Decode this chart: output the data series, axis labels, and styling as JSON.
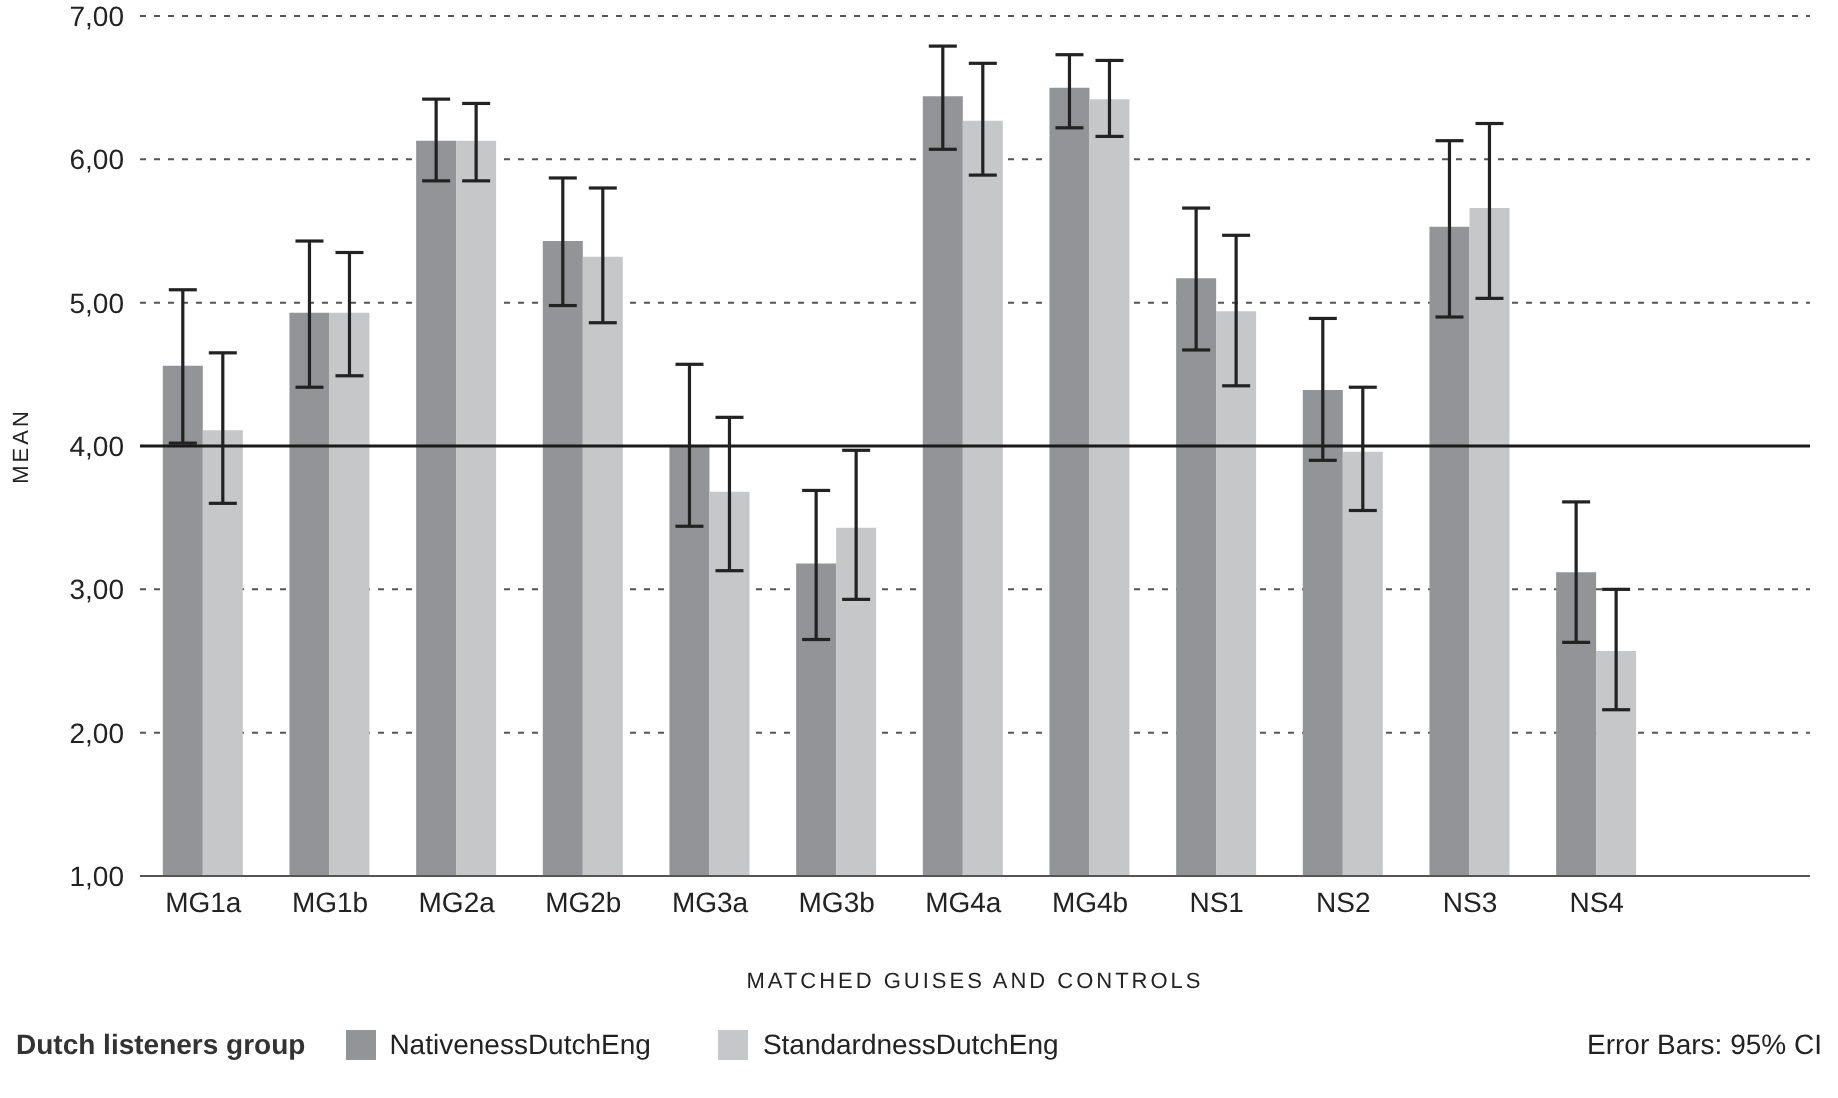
{
  "chart_data": {
    "type": "bar",
    "xlabel": "MATCHED GUISES AND CONTROLS",
    "ylabel": "MEAN",
    "legend_title": "Dutch listeners group",
    "annotations": [
      "Error Bars: 95% CI"
    ],
    "categories": [
      "MG1a",
      "MG1b",
      "MG2a",
      "MG2b",
      "MG3a",
      "MG3b",
      "MG4a",
      "MG4b",
      "NS1",
      "NS2",
      "NS3",
      "NS4"
    ],
    "series": [
      {
        "name": "NativenessDutchEng",
        "color": "#939498",
        "values": [
          4.56,
          4.93,
          6.13,
          5.43,
          4.0,
          3.18,
          6.44,
          6.5,
          5.17,
          4.39,
          5.53,
          3.12
        ],
        "errors": [
          [
            4.02,
            5.09
          ],
          [
            4.41,
            5.43
          ],
          [
            5.85,
            6.42
          ],
          [
            4.98,
            5.87
          ],
          [
            3.44,
            4.57
          ],
          [
            2.65,
            3.69
          ],
          [
            6.07,
            6.79
          ],
          [
            6.22,
            6.73
          ],
          [
            4.67,
            5.66
          ],
          [
            3.9,
            4.89
          ],
          [
            4.9,
            6.13
          ],
          [
            2.63,
            3.61
          ]
        ]
      },
      {
        "name": "StandardnessDutchEng",
        "color": "#c6c7c9",
        "values": [
          4.11,
          4.93,
          6.13,
          5.32,
          3.68,
          3.43,
          6.27,
          6.42,
          4.94,
          3.96,
          5.66,
          2.57
        ],
        "errors": [
          [
            3.6,
            4.65
          ],
          [
            4.49,
            5.35
          ],
          [
            5.85,
            6.39
          ],
          [
            4.86,
            5.8
          ],
          [
            3.13,
            4.2
          ],
          [
            2.93,
            3.97
          ],
          [
            5.89,
            6.67
          ],
          [
            6.16,
            6.69
          ],
          [
            4.42,
            5.47
          ],
          [
            3.55,
            4.41
          ],
          [
            5.03,
            6.25
          ],
          [
            2.16,
            3.0
          ]
        ]
      }
    ],
    "ylim": [
      1,
      7
    ],
    "yticks": [
      {
        "value": 1,
        "label": "1,00"
      },
      {
        "value": 2,
        "label": "2,00"
      },
      {
        "value": 3,
        "label": "3,00"
      },
      {
        "value": 4,
        "label": "4,00"
      },
      {
        "value": 5,
        "label": "5,00"
      },
      {
        "value": 6,
        "label": "6,00"
      },
      {
        "value": 7,
        "label": "7,00"
      }
    ],
    "ref_lines": [
      {
        "axis": "y",
        "value": 4,
        "label": null,
        "color": "#1a1a1a",
        "line_style": "solid"
      }
    ],
    "grid": "y",
    "legend": "bottom"
  }
}
